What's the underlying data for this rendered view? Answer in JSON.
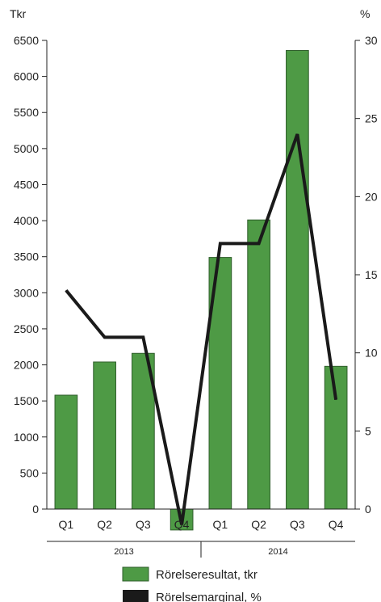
{
  "chart_data": {
    "type": "bar",
    "categories": [
      "Q1",
      "Q2",
      "Q3",
      "Q4",
      "Q1",
      "Q2",
      "Q3",
      "Q4"
    ],
    "groups": [
      {
        "label": "2013",
        "categories": [
          "Q1",
          "Q2",
          "Q3",
          "Q4"
        ]
      },
      {
        "label": "2014",
        "categories": [
          "Q1",
          "Q2",
          "Q3",
          "Q4"
        ]
      }
    ],
    "series": [
      {
        "name": "Rörelseresultat, tkr",
        "type": "bar",
        "axis": "left",
        "color": "#4e9a45",
        "values": [
          1580,
          2040,
          2160,
          -290,
          3490,
          4010,
          6360,
          1980
        ]
      },
      {
        "name": "Rörelsemarginal, %",
        "type": "line",
        "axis": "right",
        "color": "#1a1a1a",
        "values": [
          14,
          11,
          11,
          -1,
          17,
          17,
          24,
          7
        ]
      }
    ],
    "left_axis": {
      "unit": "Tkr",
      "ylim": [
        -300,
        6500
      ],
      "ticks": [
        0,
        500,
        1000,
        1500,
        2000,
        2500,
        3000,
        3500,
        4000,
        4500,
        5000,
        5500,
        6000,
        6500
      ]
    },
    "right_axis": {
      "unit": "%",
      "ylim": [
        0,
        30
      ],
      "ticks": [
        0,
        5,
        10,
        15,
        20,
        25,
        30
      ]
    },
    "legend": [
      "Rörelseresultat, tkr",
      "Rörelsemarginal, %"
    ],
    "grid": false
  }
}
